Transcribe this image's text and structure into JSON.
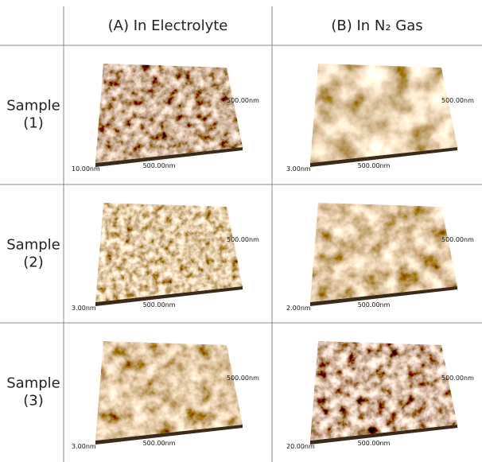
{
  "table": {
    "headers": [
      "(A) In Electrolyte",
      "(B) In N₂ Gas"
    ],
    "rows": [
      {
        "label": [
          "Sample",
          "(1)"
        ],
        "cells": [
          {
            "z": "10.00nm",
            "x": "500.00nm",
            "y": "500.00nm"
          },
          {
            "z": "3.00nm",
            "x": "500.00nm",
            "y": "500.00nm"
          }
        ]
      },
      {
        "label": [
          "Sample",
          "(2)"
        ],
        "cells": [
          {
            "z": "3.00nm",
            "x": "500.00nm",
            "y": "500.00nm"
          },
          {
            "z": "2.00nm",
            "x": "500.00nm",
            "y": "500.00nm"
          }
        ]
      },
      {
        "label": [
          "Sample",
          "(3)"
        ],
        "cells": [
          {
            "z": "3.00nm",
            "x": "500.00nm",
            "y": "500.00nm"
          },
          {
            "z": "20.00nm",
            "x": "500.00nm",
            "y": "500.00nm"
          }
        ]
      }
    ]
  }
}
